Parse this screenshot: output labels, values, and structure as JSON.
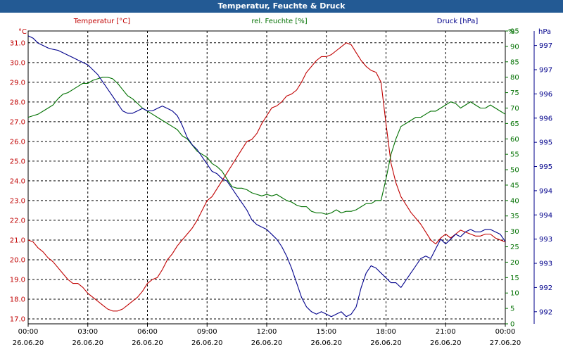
{
  "window": {
    "title": "Temperatur, Feuchte & Druck"
  },
  "chart_data": {
    "type": "line",
    "title": "Temperatur, Feuchte & Druck",
    "grid": true,
    "x_ticks": [
      {
        "time": "00:00",
        "date": "26.06.20"
      },
      {
        "time": "03:00",
        "date": "26.06.20"
      },
      {
        "time": "06:00",
        "date": "26.06.20"
      },
      {
        "time": "09:00",
        "date": "26.06.20"
      },
      {
        "time": "12:00",
        "date": "26.06.20"
      },
      {
        "time": "15:00",
        "date": "26.06.20"
      },
      {
        "time": "18:00",
        "date": "26.06.20"
      },
      {
        "time": "21:00",
        "date": "26.06.20"
      },
      {
        "time": "00:00",
        "date": "27.06.20"
      }
    ],
    "axes": {
      "temperature": {
        "label": "Temperatur [°C]",
        "unit": "°C",
        "color": "#c00000",
        "min": 16.75,
        "max": 31.6,
        "ticks": [
          "17.0",
          "18.0",
          "19.0",
          "20.0",
          "21.0",
          "22.0",
          "23.0",
          "24.0",
          "25.0",
          "26.0",
          "27.0",
          "28.0",
          "29.0",
          "30.0",
          "31.0"
        ]
      },
      "humidity": {
        "label": "rel. Feuchte [%]",
        "unit": "%",
        "color": "#007000",
        "min": 0,
        "max": 95,
        "ticks": [
          "0",
          "5",
          "10",
          "15",
          "20",
          "25",
          "30",
          "35",
          "40",
          "45",
          "50",
          "55",
          "60",
          "65",
          "70",
          "75",
          "80",
          "85",
          "90",
          "95"
        ]
      },
      "pressure": {
        "label": "Druck [hPa]",
        "unit": "hPa",
        "color": "#00008b",
        "min": 991.75,
        "max": 997.8,
        "ticks": [
          {
            "v": 992.0,
            "t": "992"
          },
          {
            "v": 992.5,
            "t": "992"
          },
          {
            "v": 993.0,
            "t": "993"
          },
          {
            "v": 993.5,
            "t": "993"
          },
          {
            "v": 994.0,
            "t": "994"
          },
          {
            "v": 994.5,
            "t": "994"
          },
          {
            "v": 995.0,
            "t": "995"
          },
          {
            "v": 995.5,
            "t": "995"
          },
          {
            "v": 996.0,
            "t": "996"
          },
          {
            "v": 996.5,
            "t": "996"
          },
          {
            "v": 997.0,
            "t": "997"
          },
          {
            "v": 997.5,
            "t": "997"
          }
        ]
      }
    },
    "series": [
      {
        "name": "Temperatur [°C]",
        "axis": "temperature",
        "color": "#c00000",
        "x": [
          0,
          0.25,
          0.5,
          0.75,
          1,
          1.25,
          1.5,
          1.75,
          2,
          2.25,
          2.5,
          2.75,
          3,
          3.25,
          3.5,
          3.75,
          4,
          4.25,
          4.5,
          4.75,
          5,
          5.25,
          5.5,
          5.75,
          6,
          6.25,
          6.5,
          6.75,
          7,
          7.25,
          7.5,
          7.75,
          8,
          8.25,
          8.5,
          8.75,
          9,
          9.25,
          9.5,
          9.75,
          10,
          10.25,
          10.5,
          10.75,
          11,
          11.25,
          11.5,
          11.75,
          12,
          12.25,
          12.5,
          12.75,
          13,
          13.25,
          13.5,
          13.75,
          14,
          14.25,
          14.5,
          14.75,
          15,
          15.25,
          15.5,
          15.75,
          16,
          16.25,
          16.5,
          16.75,
          17,
          17.25,
          17.5,
          17.75,
          18,
          18.25,
          18.5,
          18.75,
          19,
          19.25,
          19.5,
          19.75,
          20,
          20.25,
          20.5,
          20.75,
          21,
          21.25,
          21.5,
          21.75,
          22,
          22.25,
          22.5,
          22.75,
          23,
          23.25,
          23.5,
          23.75,
          24
        ],
        "values": [
          21.0,
          20.9,
          20.6,
          20.4,
          20.1,
          19.9,
          19.6,
          19.3,
          19.0,
          18.8,
          18.8,
          18.6,
          18.3,
          18.1,
          17.9,
          17.7,
          17.5,
          17.4,
          17.4,
          17.5,
          17.7,
          17.9,
          18.1,
          18.4,
          18.8,
          19.0,
          19.1,
          19.5,
          20.0,
          20.3,
          20.7,
          21.0,
          21.3,
          21.6,
          22.0,
          22.5,
          23.0,
          23.2,
          23.6,
          24.0,
          24.4,
          24.8,
          25.2,
          25.6,
          26.0,
          26.1,
          26.4,
          26.9,
          27.3,
          27.7,
          27.8,
          28.0,
          28.3,
          28.4,
          28.6,
          29.0,
          29.5,
          29.8,
          30.1,
          30.3,
          30.3,
          30.4,
          30.6,
          30.8,
          31.0,
          30.9,
          30.5,
          30.1,
          29.8,
          29.6,
          29.5,
          29.0,
          26.9,
          24.9,
          23.9,
          23.2,
          22.8,
          22.4,
          22.1,
          21.8,
          21.4,
          21.0,
          20.8,
          21.1,
          21.3,
          21.1,
          21.3,
          21.5,
          21.4,
          21.3,
          21.2,
          21.2,
          21.3,
          21.3,
          21.1,
          21.0,
          20.9
        ],
        "gridline_note": ""
      },
      {
        "name": "rel. Feuchte [%]",
        "axis": "humidity",
        "color": "#007000",
        "x": [
          0,
          0.25,
          0.5,
          0.75,
          1,
          1.25,
          1.5,
          1.75,
          2,
          2.25,
          2.5,
          2.75,
          3,
          3.25,
          3.5,
          3.75,
          4,
          4.25,
          4.5,
          4.75,
          5,
          5.25,
          5.5,
          5.75,
          6,
          6.25,
          6.5,
          6.75,
          7,
          7.25,
          7.5,
          7.75,
          8,
          8.25,
          8.5,
          8.75,
          9,
          9.25,
          9.5,
          9.75,
          10,
          10.25,
          10.5,
          10.75,
          11,
          11.25,
          11.5,
          11.75,
          12,
          12.25,
          12.5,
          12.75,
          13,
          13.25,
          13.5,
          13.75,
          14,
          14.25,
          14.5,
          14.75,
          15,
          15.25,
          15.5,
          15.75,
          16,
          16.25,
          16.5,
          16.75,
          17,
          17.25,
          17.5,
          17.75,
          18,
          18.25,
          18.5,
          18.75,
          19,
          19.25,
          19.5,
          19.75,
          20,
          20.25,
          20.5,
          20.75,
          21,
          21.25,
          21.5,
          21.75,
          22,
          22.25,
          22.5,
          22.75,
          23,
          23.25,
          23.5,
          23.75,
          24
        ],
        "values": [
          67,
          67.5,
          68,
          69,
          70,
          71,
          73,
          74.5,
          75,
          76,
          77,
          78,
          78,
          79,
          79.5,
          80,
          80,
          79.5,
          78,
          76,
          74,
          73,
          71.5,
          70,
          69,
          68,
          67,
          66,
          65,
          64,
          63,
          61,
          60,
          58,
          56,
          55,
          54,
          52,
          51,
          49.5,
          47,
          44.5,
          44,
          44,
          43.5,
          42.5,
          42,
          41.5,
          42,
          41.5,
          42,
          41,
          40,
          39.5,
          38.5,
          38,
          38,
          36.5,
          36,
          36,
          35.5,
          36,
          37,
          36,
          36.5,
          36.5,
          37,
          38,
          39,
          39,
          40,
          40,
          47,
          55,
          60,
          64,
          65,
          66,
          67,
          67,
          68,
          69,
          69,
          70,
          71,
          72,
          71.5,
          70,
          71,
          72,
          71,
          70,
          70,
          71,
          70,
          69,
          68
        ],
        "gridline_note": ""
      },
      {
        "name": "Druck [hPa]",
        "axis": "pressure",
        "color": "#00008b",
        "x": [
          0,
          0.25,
          0.5,
          0.75,
          1,
          1.25,
          1.5,
          1.75,
          2,
          2.25,
          2.5,
          2.75,
          3,
          3.25,
          3.5,
          3.75,
          4,
          4.25,
          4.5,
          4.75,
          5,
          5.25,
          5.5,
          5.75,
          6,
          6.25,
          6.5,
          6.75,
          7,
          7.25,
          7.5,
          7.75,
          8,
          8.25,
          8.5,
          8.75,
          9,
          9.25,
          9.5,
          9.75,
          10,
          10.25,
          10.5,
          10.75,
          11,
          11.25,
          11.5,
          11.75,
          12,
          12.25,
          12.5,
          12.75,
          13,
          13.25,
          13.5,
          13.75,
          14,
          14.25,
          14.5,
          14.75,
          15,
          15.25,
          15.5,
          15.75,
          16,
          16.25,
          16.5,
          16.75,
          17,
          17.25,
          17.5,
          17.75,
          18,
          18.25,
          18.5,
          18.75,
          19,
          19.25,
          19.5,
          19.75,
          20,
          20.25,
          20.5,
          20.75,
          21,
          21.25,
          21.5,
          21.75,
          22,
          22.25,
          22.5,
          22.75,
          23,
          23.25,
          23.5,
          23.75,
          24
        ],
        "values": [
          997.7,
          997.65,
          997.55,
          997.5,
          997.45,
          997.42,
          997.4,
          997.35,
          997.3,
          997.25,
          997.2,
          997.15,
          997.1,
          997.0,
          996.9,
          996.75,
          996.6,
          996.45,
          996.3,
          996.15,
          996.1,
          996.1,
          996.15,
          996.2,
          996.15,
          996.15,
          996.2,
          996.25,
          996.2,
          996.15,
          996.05,
          995.85,
          995.6,
          995.45,
          995.35,
          995.2,
          995.05,
          994.9,
          994.85,
          994.75,
          994.7,
          994.55,
          994.4,
          994.25,
          994.1,
          993.9,
          993.8,
          993.75,
          993.7,
          993.6,
          993.5,
          993.35,
          993.15,
          992.9,
          992.6,
          992.3,
          992.1,
          992.0,
          991.95,
          992.0,
          991.95,
          991.9,
          991.95,
          992.0,
          991.9,
          991.95,
          992.1,
          992.5,
          992.8,
          992.95,
          992.9,
          992.8,
          992.7,
          992.6,
          992.6,
          992.5,
          992.65,
          992.8,
          992.95,
          993.1,
          993.15,
          993.1,
          993.3,
          993.5,
          993.4,
          993.5,
          993.6,
          993.55,
          993.65,
          993.7,
          993.65,
          993.65,
          993.7,
          993.7,
          993.65,
          993.6,
          993.45
        ],
        "gridline_note": ""
      }
    ]
  }
}
